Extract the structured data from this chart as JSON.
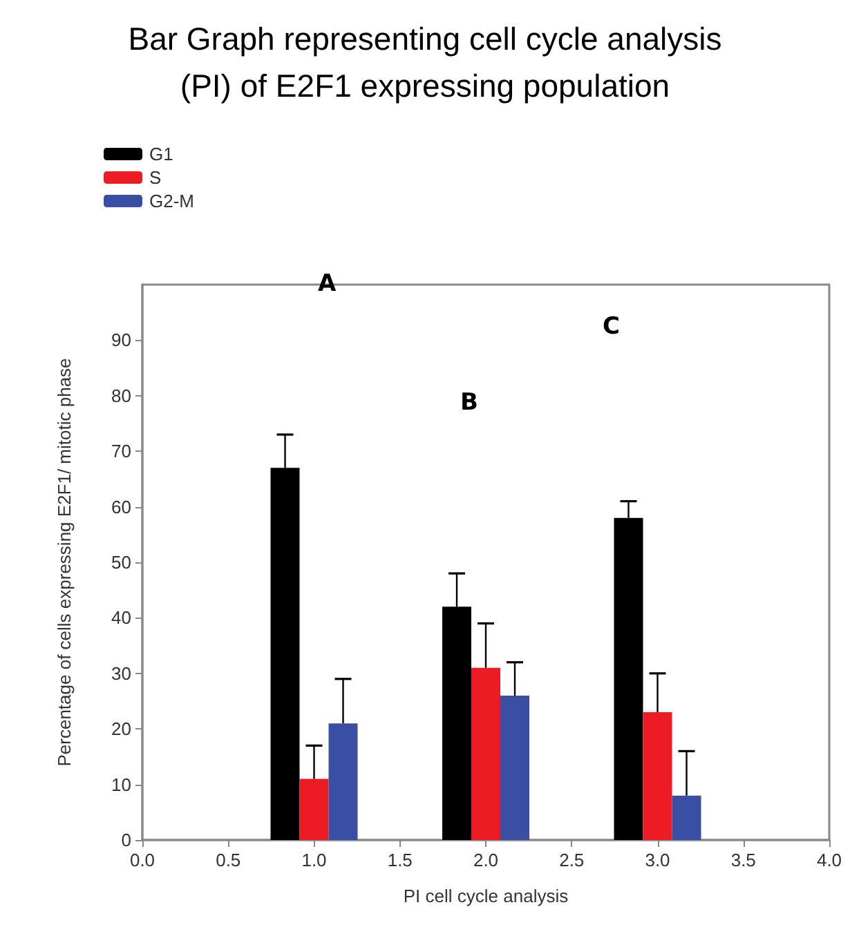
{
  "chart_data": {
    "type": "bar",
    "title": "Bar Graph representing cell cycle analysis\n(PI) of E2F1 expressing population",
    "xlabel": "PI cell cycle analysis",
    "ylabel": "Percentage of cells expressing E2F1/ mitotic phase",
    "x": [
      1,
      2,
      3
    ],
    "series": [
      {
        "name": "G1",
        "color": "#000000",
        "values": [
          67,
          42,
          58
        ],
        "errors": [
          [
            67,
            73
          ],
          [
            42,
            48
          ],
          [
            58,
            61
          ]
        ]
      },
      {
        "name": "S",
        "color": "#ed1c24",
        "values": [
          11,
          31,
          23
        ],
        "errors": [
          [
            11,
            17
          ],
          [
            31,
            39
          ],
          [
            23,
            30
          ]
        ]
      },
      {
        "name": "G2-M",
        "color": "#3a4fa3",
        "values": [
          21,
          26,
          8
        ],
        "errors": [
          [
            21,
            29
          ],
          [
            26,
            32
          ],
          [
            8,
            16
          ]
        ]
      }
    ],
    "xlim": [
      0,
      4
    ],
    "xticks": [
      {
        "value": 0,
        "label": "0.0"
      },
      {
        "value": 0.5,
        "label": "0.5"
      },
      {
        "value": 1,
        "label": "1.0"
      },
      {
        "value": 1.5,
        "label": "1.5"
      },
      {
        "value": 2,
        "label": "2.0"
      },
      {
        "value": 2.5,
        "label": "2.5"
      },
      {
        "value": 3,
        "label": "3.0"
      },
      {
        "value": 3.5,
        "label": "3.5"
      },
      {
        "value": 4,
        "label": "4.0"
      }
    ],
    "ylim": [
      0,
      100
    ],
    "yticks": [
      0,
      10,
      20,
      30,
      40,
      50,
      60,
      70,
      80,
      90
    ],
    "annotations": [
      "A",
      "B",
      "C"
    ],
    "legend": "top left",
    "grid": false
  }
}
